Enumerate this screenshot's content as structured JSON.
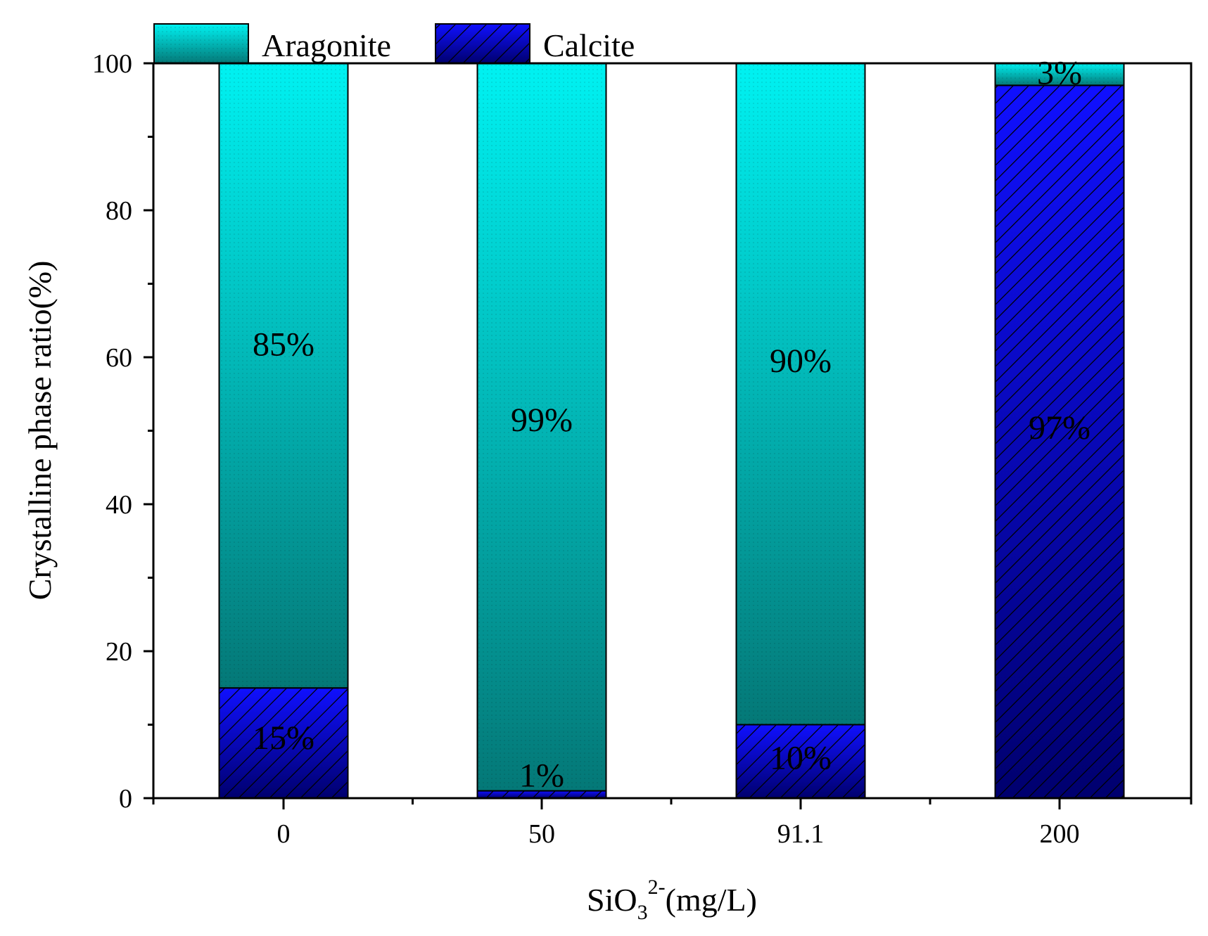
{
  "chart_data": {
    "type": "bar",
    "stacked": true,
    "categories": [
      "0",
      "50",
      "91.1",
      "200"
    ],
    "series": [
      {
        "name": "Calcite",
        "values": [
          15,
          1,
          10,
          97
        ],
        "labels": [
          "15%",
          "1%",
          "10%",
          "97%"
        ],
        "color_top": "#1010ff",
        "color_bottom": "#00006e"
      },
      {
        "name": "Aragonite",
        "values": [
          85,
          99,
          90,
          3
        ],
        "labels": [
          "85%",
          "99%",
          "90%",
          "3%"
        ],
        "color_top": "#00f2f2",
        "color_bottom": "#047877"
      }
    ],
    "xlabel": {
      "prefix": "SiO",
      "sub": "3",
      "sup": "2-",
      "suffix": "(mg/L)"
    },
    "ylabel": "Crystalline phase ratio(%)",
    "ylim": [
      0,
      100
    ],
    "yticks": [
      "0",
      "20",
      "40",
      "60",
      "80",
      "100"
    ],
    "legend_position": "top-left",
    "grid": false
  }
}
